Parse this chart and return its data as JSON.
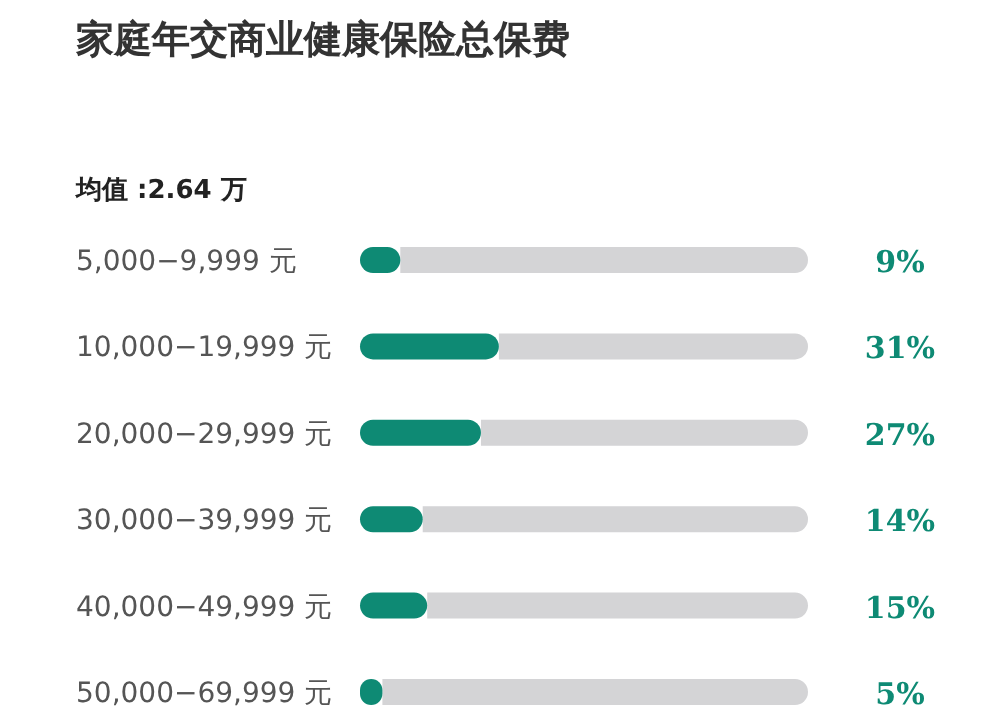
{
  "chart_data": {
    "type": "bar",
    "orientation": "horizontal",
    "title": "家庭年交商业健康保险总保费",
    "subtitle": "均值 :2.64 万",
    "categories": [
      "5,000−9,999 元",
      "10,000−19,999 元",
      "20,000−29,999 元",
      "30,000−39,999 元",
      "40,000−49,999 元",
      "50,000−69,999 元"
    ],
    "values": [
      9,
      31,
      27,
      14,
      15,
      5
    ],
    "value_labels": [
      "9%",
      "31%",
      "27%",
      "14%",
      "15%",
      "5%"
    ],
    "color": "#0e8a74",
    "xlim": [
      0,
      100
    ]
  }
}
